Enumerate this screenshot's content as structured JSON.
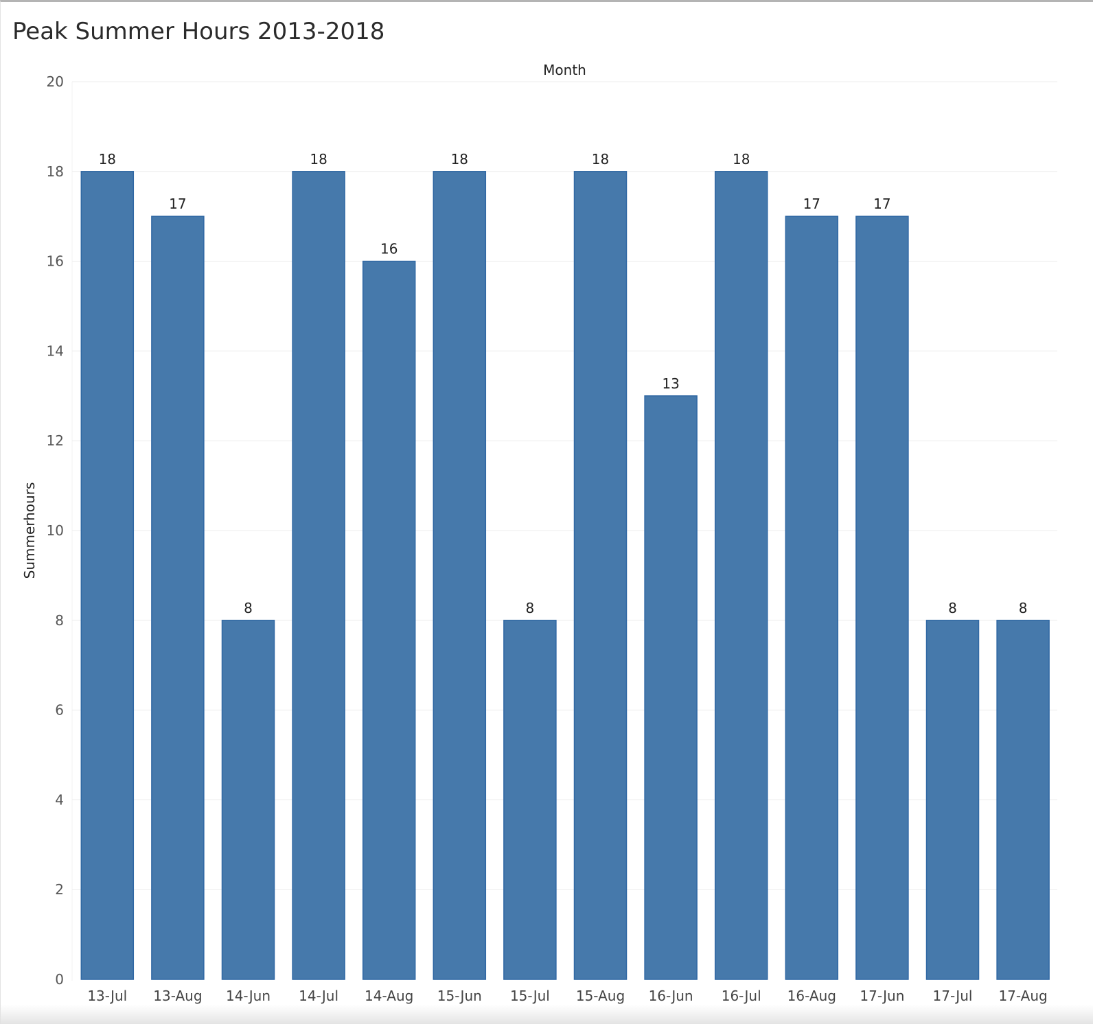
{
  "chart_data": {
    "type": "bar",
    "title": "Peak Summer Hours 2013-2018",
    "xlabel": "Month",
    "ylabel": "Summerhours",
    "categories": [
      "13-Jul",
      "13-Aug",
      "14-Jun",
      "14-Jul",
      "14-Aug",
      "15-Jun",
      "15-Jul",
      "15-Aug",
      "16-Jun",
      "16-Jul",
      "16-Aug",
      "17-Jun",
      "17-Jul",
      "17-Aug"
    ],
    "values": [
      18,
      17,
      8,
      18,
      16,
      18,
      8,
      18,
      13,
      18,
      17,
      17,
      8,
      8
    ],
    "ylim": [
      0,
      20
    ],
    "yticks": [
      0,
      2,
      4,
      6,
      8,
      10,
      12,
      14,
      16,
      18,
      20
    ],
    "grid": true,
    "data_labels": true,
    "bar_color": "#4679AB"
  }
}
